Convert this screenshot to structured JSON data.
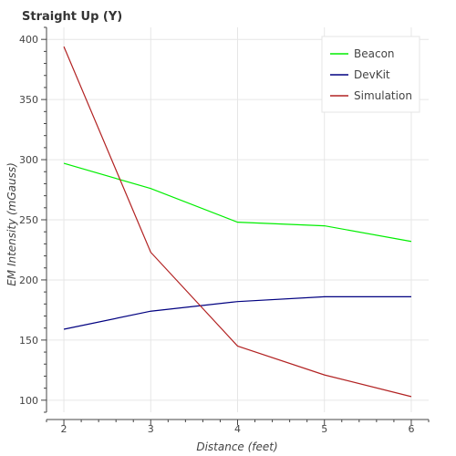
{
  "chart_data": {
    "type": "line",
    "title": "Straight Up (Y)",
    "xlabel": "Distance (feet)",
    "ylabel": "EM Intensity (mGauss)",
    "x": [
      2,
      3,
      4,
      5,
      6
    ],
    "xlim": [
      1.8,
      6.2
    ],
    "ylim": [
      90,
      410
    ],
    "xticks": [
      2,
      3,
      4,
      5,
      6
    ],
    "yticks": [
      100,
      150,
      200,
      250,
      300,
      350,
      400
    ],
    "grid": true,
    "legend_position": "top-right",
    "series": [
      {
        "name": "Beacon",
        "color": "#00ee00",
        "values": [
          297,
          276,
          248,
          245,
          232
        ]
      },
      {
        "name": "DevKit",
        "color": "#000080",
        "values": [
          159,
          174,
          182,
          186,
          186
        ]
      },
      {
        "name": "Simulation",
        "color": "#b22222",
        "values": [
          394,
          223,
          145,
          121,
          103
        ]
      }
    ]
  }
}
